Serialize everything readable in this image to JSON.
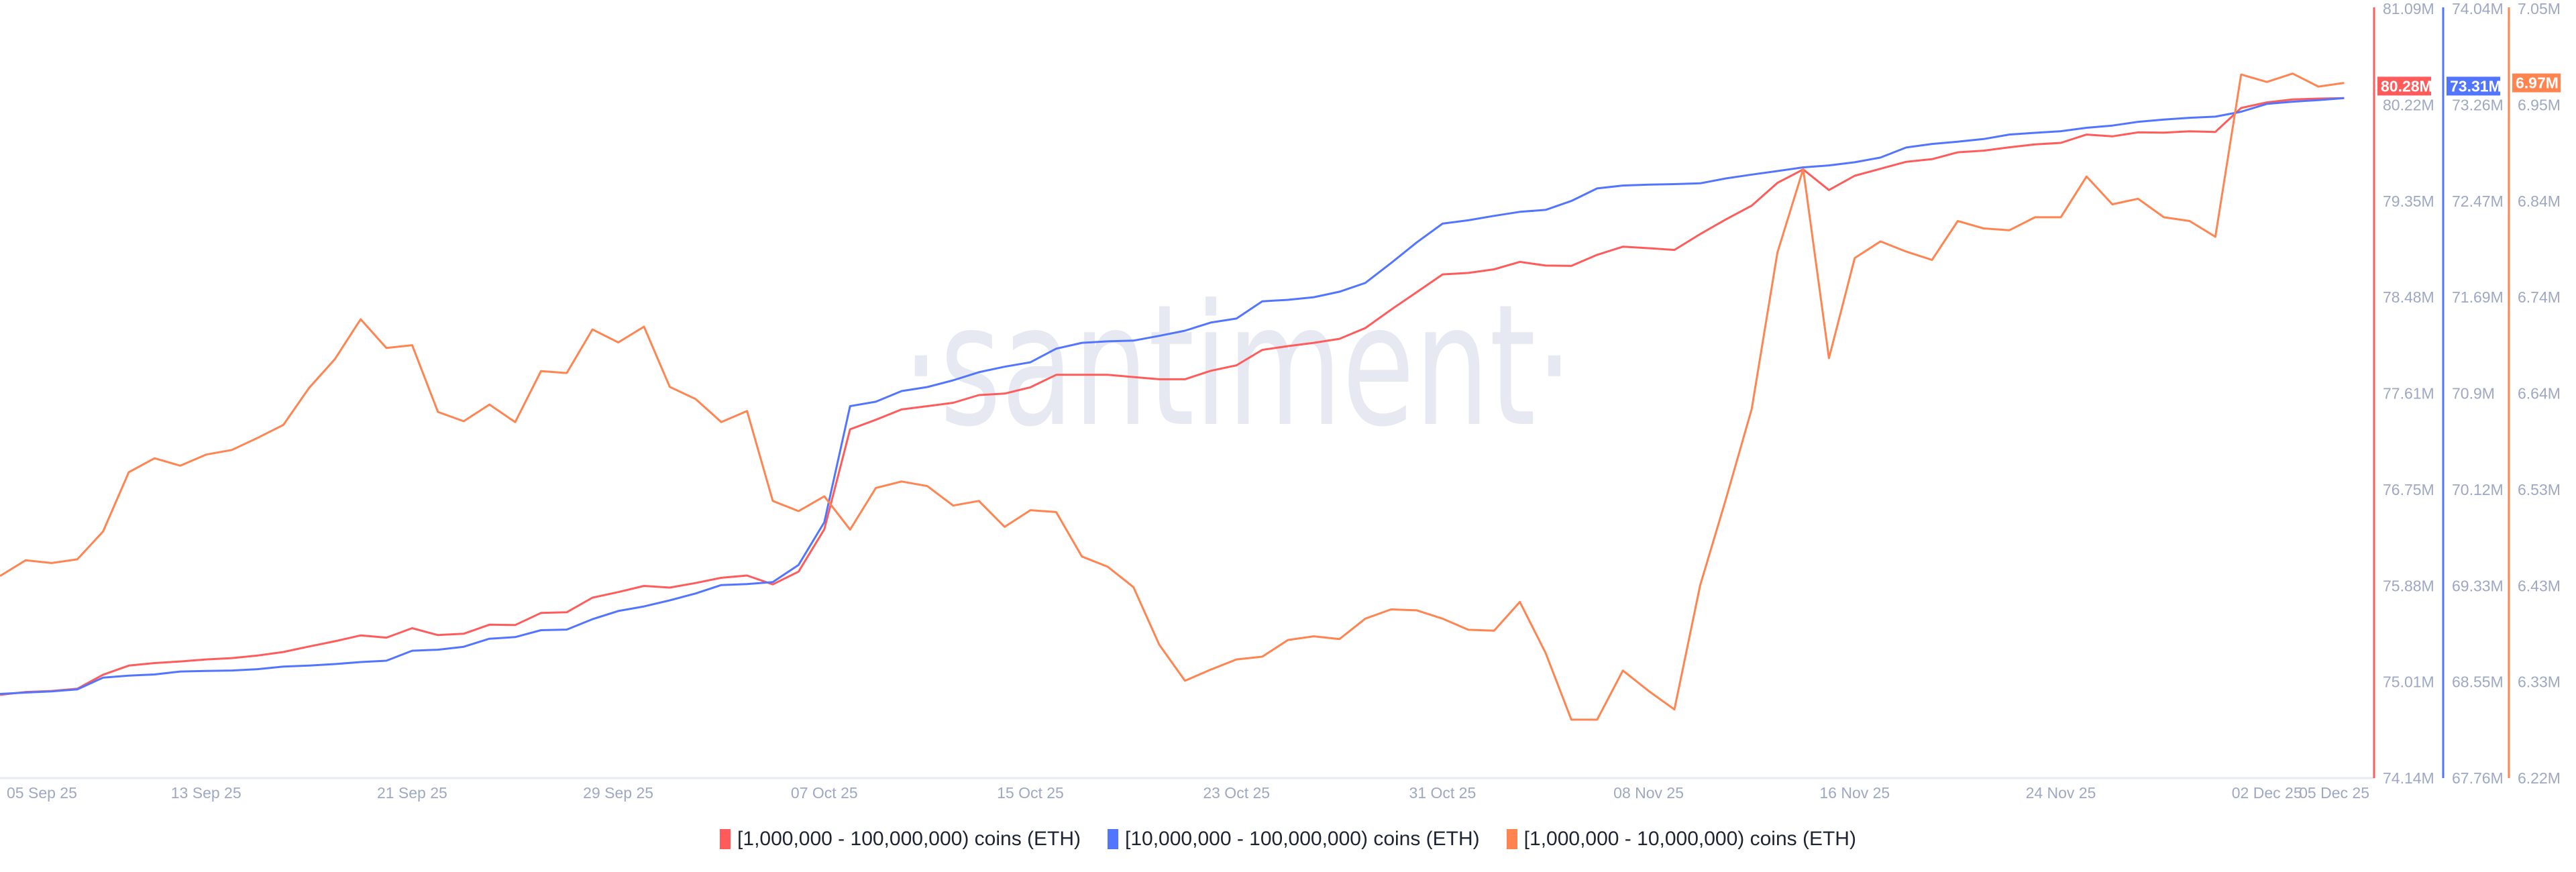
{
  "chart_data": {
    "type": "line",
    "watermark": "·santiment·",
    "x": [
      "2025-09-05",
      "2025-09-06",
      "2025-09-07",
      "2025-09-08",
      "2025-09-09",
      "2025-09-10",
      "2025-09-11",
      "2025-09-12",
      "2025-09-13",
      "2025-09-14",
      "2025-09-15",
      "2025-09-16",
      "2025-09-17",
      "2025-09-18",
      "2025-09-19",
      "2025-09-20",
      "2025-09-21",
      "2025-09-22",
      "2025-09-23",
      "2025-09-24",
      "2025-09-25",
      "2025-09-26",
      "2025-09-27",
      "2025-09-28",
      "2025-09-29",
      "2025-09-30",
      "2025-10-01",
      "2025-10-02",
      "2025-10-03",
      "2025-10-04",
      "2025-10-05",
      "2025-10-06",
      "2025-10-07",
      "2025-10-08",
      "2025-10-09",
      "2025-10-10",
      "2025-10-11",
      "2025-10-12",
      "2025-10-13",
      "2025-10-14",
      "2025-10-15",
      "2025-10-16",
      "2025-10-17",
      "2025-10-18",
      "2025-10-19",
      "2025-10-20",
      "2025-10-21",
      "2025-10-22",
      "2025-10-23",
      "2025-10-24",
      "2025-10-25",
      "2025-10-26",
      "2025-10-27",
      "2025-10-28",
      "2025-10-29",
      "2025-10-30",
      "2025-10-31",
      "2025-11-01",
      "2025-11-02",
      "2025-11-03",
      "2025-11-04",
      "2025-11-05",
      "2025-11-06",
      "2025-11-07",
      "2025-11-08",
      "2025-11-09",
      "2025-11-10",
      "2025-11-11",
      "2025-11-12",
      "2025-11-13",
      "2025-11-14",
      "2025-11-15",
      "2025-11-16",
      "2025-11-17",
      "2025-11-18",
      "2025-11-19",
      "2025-11-20",
      "2025-11-21",
      "2025-11-22",
      "2025-11-23",
      "2025-11-24",
      "2025-11-25",
      "2025-11-26",
      "2025-11-27",
      "2025-11-28",
      "2025-11-29",
      "2025-11-30",
      "2025-12-01",
      "2025-12-02",
      "2025-12-03",
      "2025-12-04",
      "2025-12-05"
    ],
    "x_ticks": [
      {
        "label": "05 Sep 25",
        "date": "2025-09-05"
      },
      {
        "label": "13 Sep 25",
        "date": "2025-09-13"
      },
      {
        "label": "21 Sep 25",
        "date": "2025-09-21"
      },
      {
        "label": "29 Sep 25",
        "date": "2025-09-29"
      },
      {
        "label": "07 Oct 25",
        "date": "2025-10-07"
      },
      {
        "label": "15 Oct 25",
        "date": "2025-10-15"
      },
      {
        "label": "23 Oct 25",
        "date": "2025-10-23"
      },
      {
        "label": "31 Oct 25",
        "date": "2025-10-31"
      },
      {
        "label": "08 Nov 25",
        "date": "2025-11-08"
      },
      {
        "label": "16 Nov 25",
        "date": "2025-11-16"
      },
      {
        "label": "24 Nov 25",
        "date": "2025-11-24"
      },
      {
        "label": "02 Dec 25",
        "date": "2025-12-02"
      },
      {
        "label": "05 Dec 25",
        "date": "2025-12-05"
      }
    ],
    "grid": false,
    "legend_position": "bottom",
    "series": [
      {
        "name": "[1,000,000 - 100,000,000) coins (ETH)",
        "color": "#ff5b5b",
        "unit": "M",
        "ylim": [
          74.14,
          81.09
        ],
        "ticks": [
          "81.09M",
          "80.22M",
          "79.35M",
          "78.48M",
          "77.61M",
          "76.75M",
          "75.88M",
          "75.01M",
          "74.14M"
        ],
        "last_value_label": "80.28M",
        "values": [
          74.892,
          74.918,
          74.927,
          74.947,
          75.074,
          75.156,
          75.179,
          75.194,
          75.212,
          75.224,
          75.247,
          75.279,
          75.329,
          75.376,
          75.429,
          75.409,
          75.494,
          75.432,
          75.444,
          75.526,
          75.523,
          75.632,
          75.638,
          75.77,
          75.82,
          75.876,
          75.861,
          75.902,
          75.949,
          75.97,
          75.89,
          76.005,
          76.388,
          77.291,
          77.377,
          77.47,
          77.5,
          77.53,
          77.6,
          77.613,
          77.67,
          77.783,
          77.783,
          77.783,
          77.763,
          77.743,
          77.743,
          77.819,
          77.869,
          78.008,
          78.042,
          78.072,
          78.108,
          78.205,
          78.371,
          78.53,
          78.69,
          78.703,
          78.736,
          78.803,
          78.77,
          78.767,
          78.867,
          78.94,
          78.927,
          78.911,
          79.054,
          79.187,
          79.311,
          79.517,
          79.638,
          79.452,
          79.581,
          79.644,
          79.707,
          79.731,
          79.793,
          79.808,
          79.838,
          79.864,
          79.878,
          79.953,
          79.937,
          79.973,
          79.971,
          79.983,
          79.977,
          80.193,
          80.244,
          80.27,
          80.278,
          80.282
        ]
      },
      {
        "name": "[10,000,000 - 100,000,000) coins (ETH)",
        "color": "#5275ff",
        "unit": "M",
        "ylim": [
          67.76,
          74.04
        ],
        "ticks": [
          "74.04M",
          "73.26M",
          "72.47M",
          "71.69M",
          "70.9M",
          "70.12M",
          "69.33M",
          "68.55M",
          "67.76M"
        ],
        "last_value_label": "73.31M",
        "values": [
          68.447,
          68.458,
          68.468,
          68.484,
          68.58,
          68.596,
          68.606,
          68.63,
          68.635,
          68.638,
          68.649,
          68.67,
          68.678,
          68.691,
          68.707,
          68.718,
          68.8,
          68.808,
          68.832,
          68.898,
          68.911,
          68.967,
          68.972,
          69.057,
          69.124,
          69.161,
          69.211,
          69.267,
          69.336,
          69.344,
          69.36,
          69.5,
          69.849,
          70.796,
          70.832,
          70.919,
          70.952,
          71.007,
          71.073,
          71.118,
          71.154,
          71.265,
          71.313,
          71.325,
          71.331,
          71.37,
          71.412,
          71.478,
          71.511,
          71.652,
          71.664,
          71.685,
          71.73,
          71.802,
          71.964,
          72.133,
          72.286,
          72.313,
          72.349,
          72.382,
          72.398,
          72.471,
          72.573,
          72.597,
          72.604,
          72.608,
          72.615,
          72.655,
          72.686,
          72.715,
          72.745,
          72.761,
          72.787,
          72.825,
          72.907,
          72.936,
          72.955,
          72.976,
          73.013,
          73.027,
          73.04,
          73.068,
          73.086,
          73.117,
          73.135,
          73.15,
          73.159,
          73.199,
          73.263,
          73.281,
          73.294,
          73.31
        ]
      },
      {
        "name": "[1,000,000 - 10,000,000) coins (ETH)",
        "color": "#ff8450",
        "unit": "M",
        "ylim": [
          6.22,
          7.05
        ],
        "ticks": [
          "7.05M",
          "6.95M",
          "6.84M",
          "6.74M",
          "6.64M",
          "6.53M",
          "6.43M",
          "6.33M",
          "6.22M"
        ],
        "last_value_label": "6.97M",
        "values": [
          6.438,
          6.455,
          6.452,
          6.456,
          6.486,
          6.55,
          6.565,
          6.557,
          6.569,
          6.574,
          6.587,
          6.601,
          6.641,
          6.672,
          6.715,
          6.684,
          6.687,
          6.615,
          6.605,
          6.623,
          6.604,
          6.659,
          6.657,
          6.704,
          6.69,
          6.707,
          6.642,
          6.629,
          6.604,
          6.616,
          6.519,
          6.508,
          6.524,
          6.488,
          6.533,
          6.54,
          6.535,
          6.514,
          6.519,
          6.491,
          6.509,
          6.507,
          6.459,
          6.448,
          6.426,
          6.364,
          6.325,
          6.337,
          6.348,
          6.351,
          6.369,
          6.373,
          6.37,
          6.392,
          6.402,
          6.401,
          6.392,
          6.38,
          6.379,
          6.41,
          6.355,
          6.283,
          6.283,
          6.336,
          6.314,
          6.294,
          6.428,
          6.521,
          6.618,
          6.787,
          6.877,
          6.673,
          6.781,
          6.799,
          6.788,
          6.779,
          6.821,
          6.813,
          6.811,
          6.825,
          6.825,
          6.869,
          6.839,
          6.845,
          6.825,
          6.821,
          6.804,
          6.979,
          6.971,
          6.98,
          6.966,
          6.97
        ]
      }
    ]
  }
}
